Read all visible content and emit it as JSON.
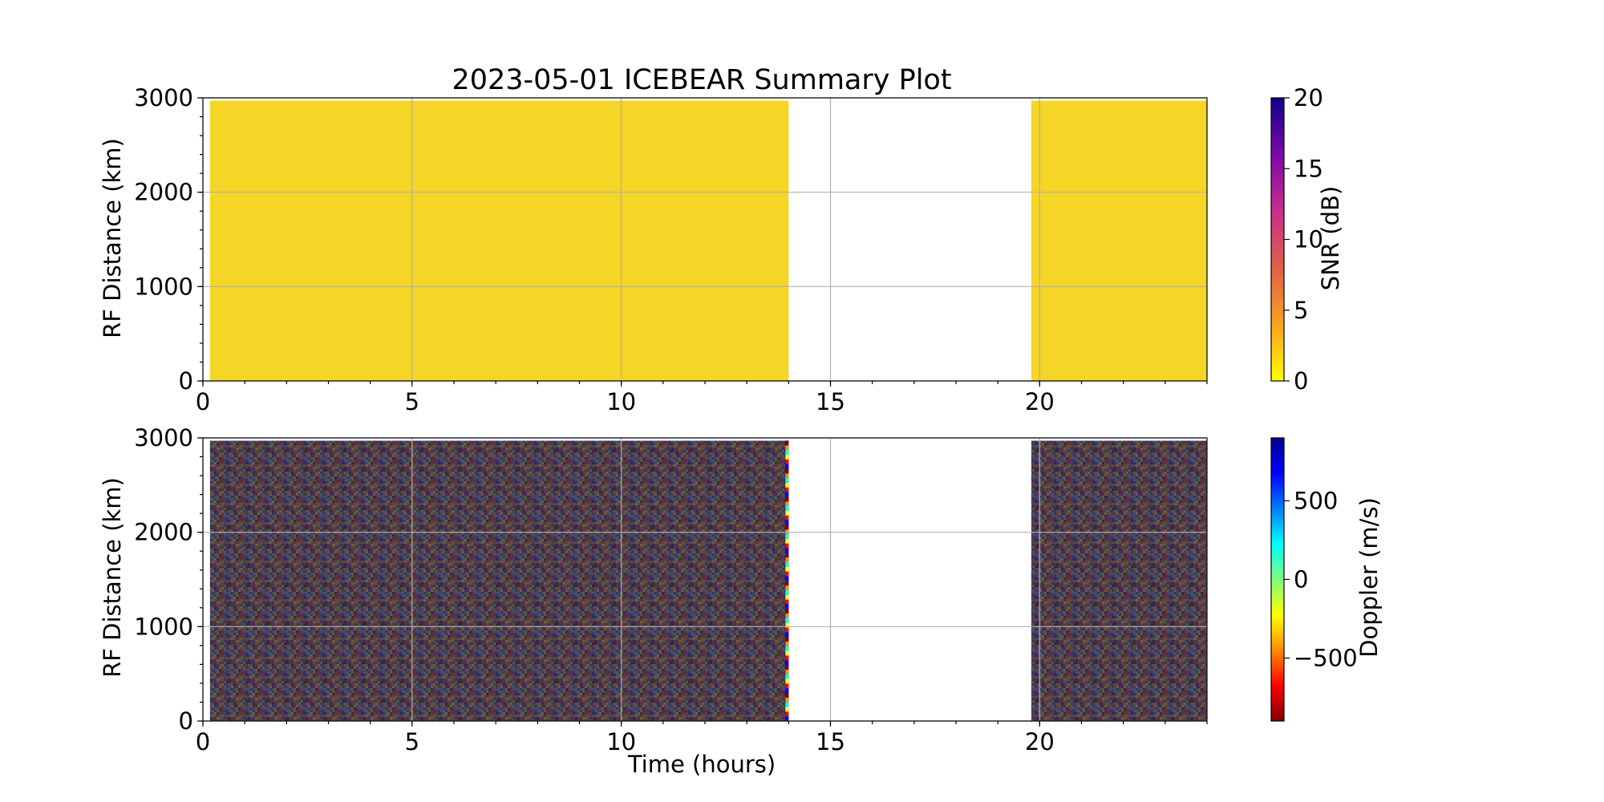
{
  "chart_data": [
    {
      "type": "scatter",
      "title": "2023-05-01 ICEBEAR Summary Plot",
      "xlabel": "",
      "ylabel": "RF Distance (km)",
      "xlim": [
        0,
        24
      ],
      "ylim": [
        0,
        3000
      ],
      "xticks": [
        "0",
        "5",
        "10",
        "15",
        "20"
      ],
      "yticks": [
        "0",
        "1000",
        "2000",
        "3000"
      ],
      "grid": true,
      "data_blocks": [
        {
          "x_start": 0.17,
          "x_end": 14.0,
          "y_start": 0,
          "y_end": 2970
        },
        {
          "x_start": 19.8,
          "x_end": 24.0,
          "y_start": 0,
          "y_end": 2970
        }
      ],
      "color_value": "approximately 0 dB (uniform yellow)",
      "colorbar": {
        "label": "SNR (dB)",
        "range": [
          0,
          20
        ],
        "ticks": [
          "0",
          "5",
          "10",
          "15",
          "20"
        ],
        "colors": [
          "#ffff00",
          "#f9a21f",
          "#e0604a",
          "#c92f8a",
          "#7a0aa8",
          "#10008a"
        ]
      },
      "fill_color": "#f5d525"
    },
    {
      "type": "scatter",
      "title": "",
      "xlabel": "Time (hours)",
      "ylabel": "RF Distance (km)",
      "xlim": [
        0,
        24
      ],
      "ylim": [
        0,
        3000
      ],
      "xticks": [
        "0",
        "5",
        "10",
        "15",
        "20"
      ],
      "yticks": [
        "0",
        "1000",
        "2000",
        "3000"
      ],
      "grid": true,
      "data_blocks": [
        {
          "x_start": 0.17,
          "x_end": 14.0,
          "y_start": 0,
          "y_end": 2970
        },
        {
          "x_start": 19.8,
          "x_end": 24.0,
          "y_start": 0,
          "y_end": 2970
        }
      ],
      "color_value": "random Doppler noise across full range",
      "colorbar": {
        "label": "Doppler (m/s)",
        "range": [
          -900,
          900
        ],
        "ticks": [
          "−500",
          "0",
          "500"
        ],
        "tick_values": [
          -500,
          0,
          500
        ],
        "colors": [
          "#800000",
          "#ff0000",
          "#ff8c00",
          "#ffff00",
          "#7fff7f",
          "#00ffff",
          "#0080ff",
          "#0000ff",
          "#00008b"
        ]
      },
      "noise_palette": [
        "#3b2d6e",
        "#6b2b3a",
        "#2e3a6e",
        "#5a3b46",
        "#4a4a5a",
        "#7a5a2a",
        "#2b2b4a",
        "#6a2a2a",
        "#3a5a6a",
        "#5a5a2a"
      ]
    }
  ]
}
